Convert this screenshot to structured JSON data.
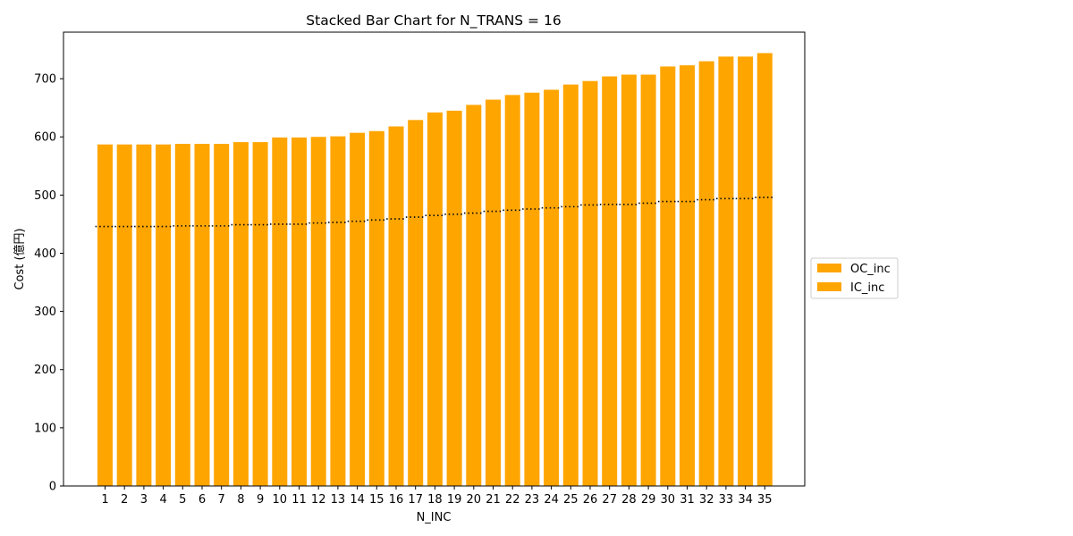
{
  "chart_data": {
    "type": "bar",
    "stacked": true,
    "title": "Stacked Bar Chart for N_TRANS = 16",
    "xlabel": "N_INC",
    "ylabel": "Cost (億円)",
    "categories": [
      "1",
      "2",
      "3",
      "4",
      "5",
      "6",
      "7",
      "8",
      "9",
      "10",
      "11",
      "12",
      "13",
      "14",
      "15",
      "16",
      "17",
      "18",
      "19",
      "20",
      "21",
      "22",
      "23",
      "24",
      "25",
      "26",
      "27",
      "28",
      "29",
      "30",
      "31",
      "32",
      "33",
      "34",
      "35"
    ],
    "series": [
      {
        "name": "IC_inc",
        "color": "#ffa500",
        "values": [
          446,
          446,
          446,
          446,
          447,
          447,
          447,
          449,
          449,
          450,
          450,
          452,
          453,
          455,
          457,
          459,
          462,
          465,
          467,
          469,
          472,
          474,
          476,
          478,
          480,
          483,
          484,
          484,
          486,
          489,
          489,
          492,
          494,
          494,
          496
        ]
      },
      {
        "name": "OC_inc",
        "color": "#ffa500",
        "values": [
          141,
          141,
          141,
          141,
          141,
          141,
          141,
          142,
          142,
          149,
          149,
          148,
          148,
          152,
          153,
          159,
          167,
          177,
          178,
          186,
          192,
          198,
          200,
          203,
          210,
          213,
          220,
          223,
          221,
          232,
          234,
          238,
          244,
          244,
          248
        ]
      }
    ],
    "boundary_line": {
      "style": "dotted",
      "color": "#000000"
    },
    "yticks": [
      0,
      100,
      200,
      300,
      400,
      500,
      600,
      700
    ],
    "ylim": [
      0,
      780
    ],
    "grid": false,
    "legend_position": "right-center"
  },
  "legend": {
    "items": [
      {
        "label": "OC_inc",
        "color": "#ffa500"
      },
      {
        "label": "IC_inc",
        "color": "#ffa500"
      }
    ]
  }
}
